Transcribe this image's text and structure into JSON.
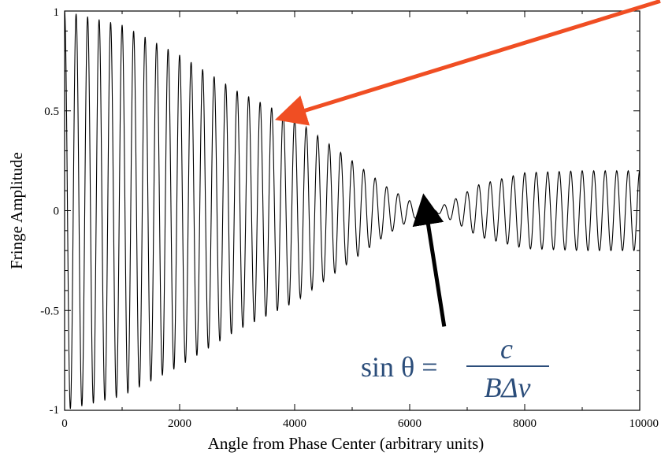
{
  "chart_data": {
    "type": "line",
    "title": "",
    "xlabel": "Angle from Phase Center (arbitrary units)",
    "ylabel": "Fringe Amplitude",
    "xlim": [
      0,
      10000
    ],
    "ylim": [
      -1,
      1
    ],
    "x_ticks": [
      {
        "value": 0,
        "label": "0"
      },
      {
        "value": 2000,
        "label": "2000"
      },
      {
        "value": 4000,
        "label": "4000"
      },
      {
        "value": 6000,
        "label": "6000"
      },
      {
        "value": 8000,
        "label": "8000"
      },
      {
        "value": 10000,
        "label": "10000"
      }
    ],
    "y_ticks": [
      {
        "value": -1,
        "label": "-1"
      },
      {
        "value": -0.5,
        "label": "-0.5"
      },
      {
        "value": 0,
        "label": "0"
      },
      {
        "value": 0.5,
        "label": "0.5"
      },
      {
        "value": 1,
        "label": "1"
      }
    ],
    "series": [
      {
        "fringe_period": 200,
        "first_null": 6400,
        "samples": 2000,
        "envelope": [
          {
            "x": 0,
            "y": 1.0
          },
          {
            "x": 1000,
            "y": 0.93
          },
          {
            "x": 2000,
            "y": 0.78
          },
          {
            "x": 3000,
            "y": 0.6
          },
          {
            "x": 4000,
            "y": 0.46
          },
          {
            "x": 5000,
            "y": 0.25
          },
          {
            "x": 5600,
            "y": 0.12
          },
          {
            "x": 6000,
            "y": 0.05
          },
          {
            "x": 6400,
            "y": 0.0
          },
          {
            "x": 6800,
            "y": 0.06
          },
          {
            "x": 7200,
            "y": 0.13
          },
          {
            "x": 8000,
            "y": 0.19
          },
          {
            "x": 9000,
            "y": 0.2
          },
          {
            "x": 10000,
            "y": 0.2
          }
        ],
        "color": "#000000"
      }
    ],
    "annotations": [
      {
        "kind": "arrow",
        "color": "#f04e23",
        "from": {
          "x": 12200,
          "y": 1.05
        },
        "to": {
          "x": 4050,
          "y": 0.49
        }
      },
      {
        "kind": "arrow",
        "color": "#000000",
        "from": {
          "x": 6600,
          "y": -0.58
        },
        "to": {
          "x": 6300,
          "y": -0.03
        }
      },
      {
        "kind": "formula",
        "color": "#2b4d7a",
        "lhs": "sin θ =",
        "numerator": "c",
        "denominator": "BΔν"
      }
    ],
    "grid": false,
    "legend": "none"
  }
}
